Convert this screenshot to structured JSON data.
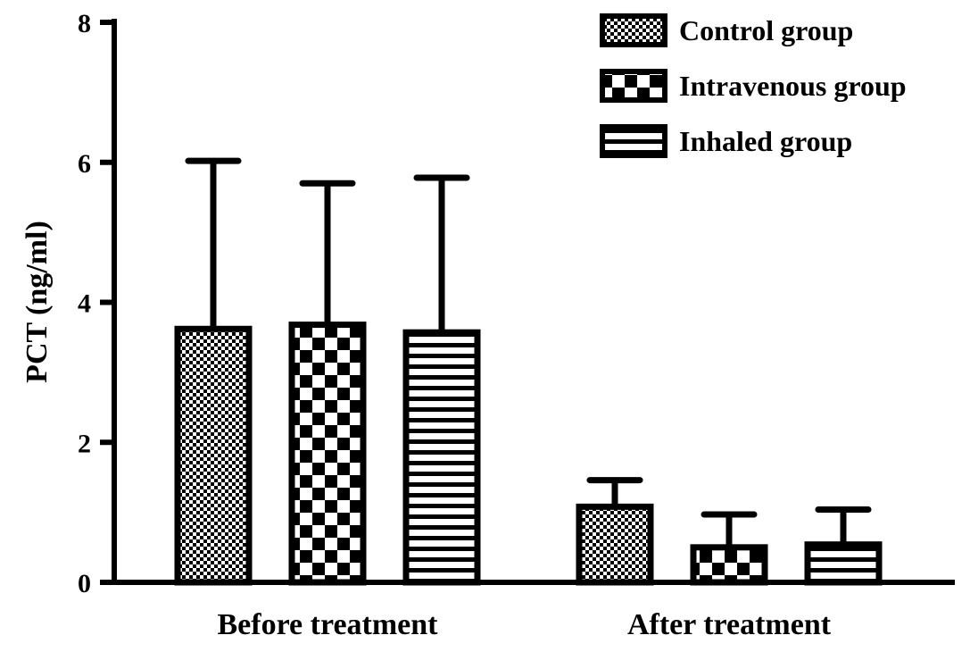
{
  "chart_data": {
    "type": "bar",
    "title": "",
    "xlabel": "",
    "ylabel": "PCT (ng/ml)",
    "ylim": [
      0,
      8
    ],
    "yticks": [
      0,
      2,
      4,
      6,
      8
    ],
    "grid": false,
    "legend_position": "top-right",
    "categories": [
      "Before treatment",
      "After treatment"
    ],
    "series": [
      {
        "name": "Control group",
        "pattern": "dots",
        "values": [
          3.62,
          1.08
        ],
        "errors": [
          2.4,
          0.38
        ]
      },
      {
        "name": "Intravenous group",
        "pattern": "checker",
        "values": [
          3.68,
          0.5
        ],
        "errors": [
          2.02,
          0.47
        ]
      },
      {
        "name": "Inhaled group",
        "pattern": "stripes",
        "values": [
          3.57,
          0.54
        ],
        "errors": [
          2.21,
          0.5
        ]
      }
    ],
    "colors": {
      "ink": "#000000",
      "background": "#ffffff"
    }
  }
}
